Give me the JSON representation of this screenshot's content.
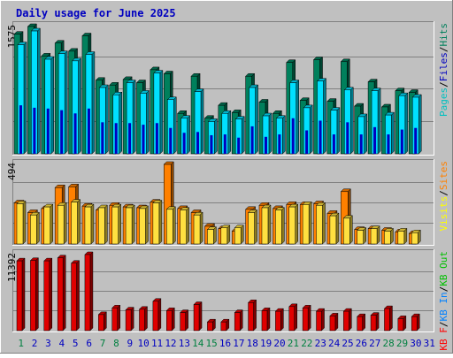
{
  "chart_data": [
    {
      "type": "bar",
      "title": "Daily usage for June 2025",
      "max_label": "1575",
      "legend": [
        {
          "text": "Pages",
          "color": "#00C0C0"
        },
        {
          "text": "/",
          "color": "#000000"
        },
        {
          "text": "Files",
          "color": "#0000C0"
        },
        {
          "text": "/",
          "color": "#000000"
        },
        {
          "text": "Hits",
          "color": "#00805C"
        }
      ],
      "colors": {
        "hits": "#00805C",
        "files": "#00E0FF",
        "pages": "#0000C0"
      },
      "categories": [
        "1",
        "2",
        "3",
        "4",
        "5",
        "6",
        "7",
        "8",
        "9",
        "10",
        "11",
        "12",
        "13",
        "14",
        "15",
        "16",
        "17",
        "18",
        "19",
        "20",
        "21",
        "22",
        "23",
        "24",
        "25",
        "26",
        "27",
        "28",
        "29",
        "30",
        "31"
      ],
      "ylim": [
        0,
        1575
      ],
      "series": [
        {
          "name": "Hits",
          "values": [
            1480,
            1575,
            1210,
            1370,
            1270,
            1460,
            910,
            850,
            920,
            880,
            1040,
            990,
            500,
            960,
            440,
            600,
            510,
            960,
            640,
            500,
            1130,
            660,
            1165,
            650,
            1140,
            590,
            890,
            580,
            780,
            760,
            null
          ]
        },
        {
          "name": "Files",
          "values": [
            1350,
            1520,
            1170,
            1240,
            1150,
            1230,
            820,
            730,
            880,
            750,
            1000,
            670,
            440,
            770,
            400,
            500,
            430,
            820,
            470,
            440,
            880,
            570,
            900,
            540,
            790,
            460,
            780,
            480,
            720,
            700,
            null
          ]
        },
        {
          "name": "Pages",
          "values": [
            600,
            570,
            560,
            540,
            500,
            560,
            390,
            380,
            380,
            360,
            380,
            320,
            260,
            270,
            230,
            240,
            200,
            340,
            210,
            240,
            440,
            290,
            410,
            240,
            390,
            240,
            330,
            240,
            300,
            320,
            null
          ]
        }
      ]
    },
    {
      "type": "bar",
      "max_label": "494",
      "legend": [
        {
          "text": "Visits",
          "color": "#FFFF00"
        },
        {
          "text": "/",
          "color": "#000000"
        },
        {
          "text": "Sites",
          "color": "#FF8000"
        }
      ],
      "colors": {
        "visits": "#FFE040",
        "sites": "#FF8000"
      },
      "categories": [
        "1",
        "2",
        "3",
        "4",
        "5",
        "6",
        "7",
        "8",
        "9",
        "10",
        "11",
        "12",
        "13",
        "14",
        "15",
        "16",
        "17",
        "18",
        "19",
        "20",
        "21",
        "22",
        "23",
        "24",
        "25",
        "26",
        "27",
        "28",
        "29",
        "30",
        "31"
      ],
      "ylim": [
        0,
        494
      ],
      "series": [
        {
          "name": "Visits",
          "values": [
            250,
            180,
            230,
            240,
            260,
            230,
            225,
            230,
            225,
            220,
            255,
            215,
            210,
            180,
            90,
            100,
            100,
            195,
            225,
            210,
            230,
            245,
            240,
            175,
            160,
            85,
            95,
            80,
            80,
            70,
            null
          ]
        },
        {
          "name": "Sites",
          "values": [
            255,
            195,
            220,
            350,
            355,
            235,
            210,
            240,
            230,
            225,
            260,
            494,
            220,
            195,
            110,
            95,
            80,
            215,
            240,
            220,
            245,
            245,
            250,
            190,
            325,
            90,
            95,
            85,
            75,
            65,
            null
          ]
        }
      ]
    },
    {
      "type": "bar",
      "max_label": "11392",
      "legend": [
        {
          "text": "KB F",
          "color": "#FF0000"
        },
        {
          "text": "/",
          "color": "#000000"
        },
        {
          "text": "KB In",
          "color": "#0080FF"
        },
        {
          "text": "/",
          "color": "#000000"
        },
        {
          "text": "KB Out",
          "color": "#00C000"
        }
      ],
      "colors": {
        "kbf": "#E00000"
      },
      "categories": [
        "1",
        "2",
        "3",
        "4",
        "5",
        "6",
        "7",
        "8",
        "9",
        "10",
        "11",
        "12",
        "13",
        "14",
        "15",
        "16",
        "17",
        "18",
        "19",
        "20",
        "21",
        "22",
        "23",
        "24",
        "25",
        "26",
        "27",
        "28",
        "29",
        "30",
        "31"
      ],
      "ylim": [
        0,
        11392
      ],
      "series": [
        {
          "name": "KB F",
          "values": [
            10450,
            10500,
            10450,
            10900,
            10100,
            11392,
            2400,
            3400,
            3100,
            3200,
            4400,
            3000,
            2700,
            3900,
            1300,
            1300,
            2700,
            4200,
            3000,
            2900,
            3600,
            3400,
            2900,
            2200,
            2900,
            2100,
            2300,
            3300,
            1800,
            2100,
            null
          ]
        }
      ],
      "day_colors": [
        "#008040",
        "#0000C0",
        "#0000C0",
        "#0000C0",
        "#0000C0",
        "#0000C0",
        "#008040",
        "#008040",
        "#0000C0",
        "#0000C0",
        "#0000C0",
        "#0000C0",
        "#0000C0",
        "#008040",
        "#008040",
        "#0000C0",
        "#0000C0",
        "#0000C0",
        "#0000C0",
        "#0000C0",
        "#008040",
        "#008040",
        "#0000C0",
        "#0000C0",
        "#0000C0",
        "#0000C0",
        "#0000C0",
        "#008040",
        "#008040",
        "#0000C0",
        "#0000C0"
      ]
    }
  ]
}
